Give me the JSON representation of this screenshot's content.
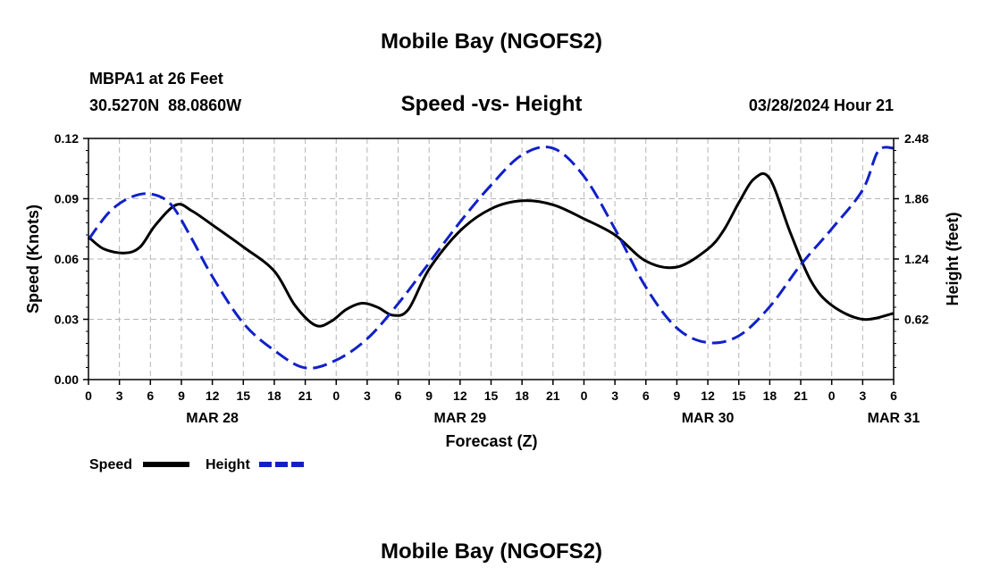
{
  "page": {
    "title": "Mobile Bay (NGOFS2)",
    "footer_title": "Mobile Bay (NGOFS2)"
  },
  "station": {
    "name_line": "MBPA1 at 26 Feet",
    "coords_line": "30.5270N  88.0860W",
    "datetime": "03/28/2024 Hour 21"
  },
  "colors": {
    "speed": "#000000",
    "height": "#1020c8",
    "grid": "#b4b4b4"
  },
  "chart_data": {
    "type": "line",
    "title": "Speed -vs- Height",
    "xlabel": "Forecast (Z)",
    "ylabel_left": "Speed (Knots)",
    "ylabel_right": "Height (feet)",
    "x_range_hours": [
      0,
      78
    ],
    "x_ticks": {
      "hours": [
        0,
        3,
        6,
        9,
        12,
        15,
        18,
        21,
        24,
        27,
        30,
        33,
        36,
        39,
        42,
        45,
        48,
        51,
        54,
        57,
        60,
        63,
        66,
        69,
        72,
        75,
        78
      ],
      "labels": [
        "0",
        "3",
        "6",
        "9",
        "12",
        "15",
        "18",
        "21",
        "0",
        "3",
        "6",
        "9",
        "12",
        "15",
        "18",
        "21",
        "0",
        "3",
        "6",
        "9",
        "12",
        "15",
        "18",
        "21",
        "0",
        "3",
        "6"
      ]
    },
    "dates": [
      {
        "label": "MAR 28",
        "hour": 12
      },
      {
        "label": "MAR 29",
        "hour": 36
      },
      {
        "label": "MAR 30",
        "hour": 60
      },
      {
        "label": "MAR 31",
        "hour": 78
      }
    ],
    "y_left": {
      "range": [
        0,
        0.12
      ],
      "ticks": [
        0,
        0.03,
        0.06,
        0.09,
        0.12
      ],
      "tick_labels": [
        "0.00",
        "0.03",
        "0.06",
        "0.09",
        "0.12"
      ]
    },
    "y_right": {
      "range": [
        0,
        2.48
      ],
      "ticks": [
        0.62,
        1.24,
        1.86,
        2.48
      ],
      "tick_labels": [
        "0.62",
        "1.24",
        "1.86",
        "2.48"
      ]
    },
    "grid": true,
    "series": [
      {
        "name": "Speed",
        "axis": "left",
        "style": "solid",
        "x": [
          0,
          1.5,
          3.5,
          5,
          6.5,
          8.5,
          10,
          12,
          15,
          18,
          20,
          22,
          23.5,
          25,
          26.5,
          28,
          29.5,
          31,
          33,
          36,
          39,
          42,
          45,
          48,
          51,
          54,
          57,
          60,
          61.5,
          63,
          64.5,
          66,
          68,
          70,
          72,
          75,
          78
        ],
        "values": [
          0.071,
          0.065,
          0.063,
          0.066,
          0.077,
          0.087,
          0.084,
          0.077,
          0.066,
          0.054,
          0.037,
          0.027,
          0.029,
          0.035,
          0.038,
          0.036,
          0.032,
          0.035,
          0.055,
          0.074,
          0.085,
          0.089,
          0.087,
          0.08,
          0.072,
          0.059,
          0.056,
          0.065,
          0.074,
          0.088,
          0.1,
          0.1,
          0.073,
          0.049,
          0.037,
          0.03,
          0.033
        ]
      },
      {
        "name": "Height",
        "axis": "right",
        "style": "dashed",
        "x": [
          0,
          2,
          4,
          6,
          8,
          10,
          12,
          15,
          18,
          21,
          24,
          27,
          30,
          33,
          36,
          39,
          42,
          45,
          48,
          51,
          54,
          57,
          60,
          63,
          66,
          69,
          72,
          75,
          76.5,
          78
        ],
        "values": [
          1.44,
          1.72,
          1.87,
          1.91,
          1.8,
          1.45,
          1.06,
          0.58,
          0.3,
          0.12,
          0.2,
          0.42,
          0.78,
          1.2,
          1.62,
          2.0,
          2.31,
          2.38,
          2.09,
          1.55,
          0.95,
          0.53,
          0.38,
          0.45,
          0.75,
          1.18,
          1.55,
          1.95,
          2.35,
          2.38
        ]
      }
    ],
    "legend": {
      "placement": "bottom-left",
      "entries": [
        "Speed",
        "Height"
      ]
    }
  }
}
